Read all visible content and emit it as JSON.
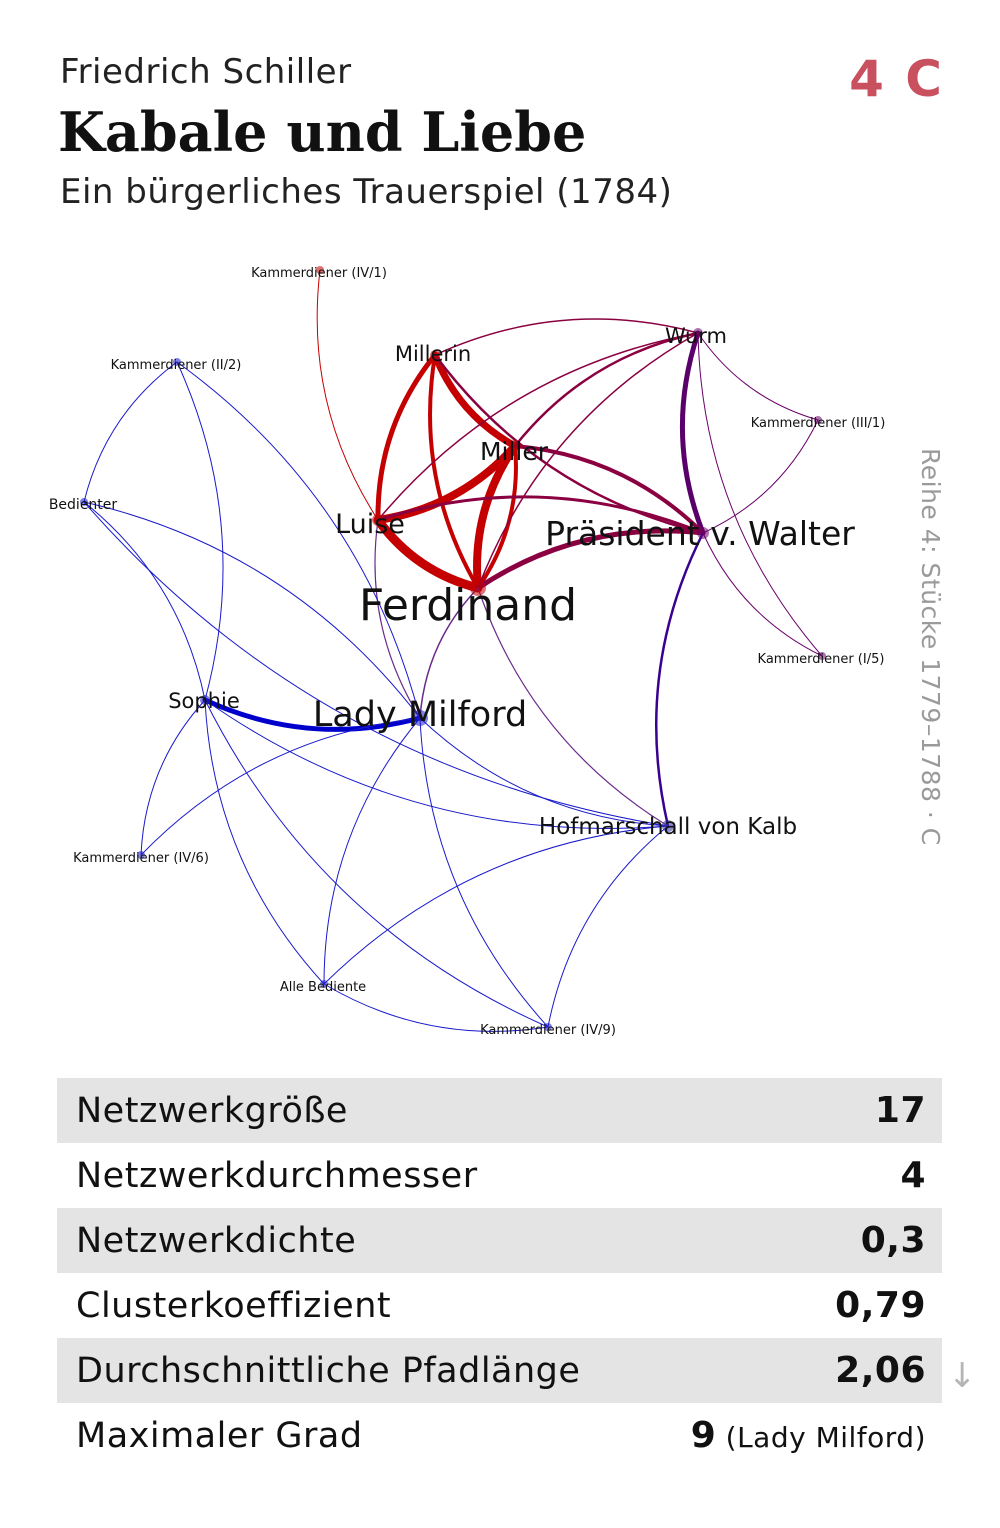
{
  "header": {
    "author": "Friedrich Schiller",
    "title": "Kabale und Liebe",
    "subtitle": "Ein bürgerliches Trauerspiel (1784)",
    "code": "4 C",
    "code_color": "#c8505f",
    "side_label": "Reihe 4: Stücke 1779–1788 · C"
  },
  "network": {
    "nodes": [
      {
        "id": "ferdinand",
        "label": "Ferdinand",
        "color": "#c40000"
      },
      {
        "id": "luise",
        "label": "Luise",
        "color": "#c40000"
      },
      {
        "id": "miller",
        "label": "Miller",
        "color": "#c40000"
      },
      {
        "id": "millerin",
        "label": "Millerin",
        "color": "#c40000"
      },
      {
        "id": "praesident",
        "label": "Präsident v. Walter",
        "color": "#6a006a"
      },
      {
        "id": "wurm",
        "label": "Wurm",
        "color": "#6a006a"
      },
      {
        "id": "milford",
        "label": "Lady Milford",
        "color": "#1a1acc"
      },
      {
        "id": "sophie",
        "label": "Sophie",
        "color": "#1a1acc"
      },
      {
        "id": "kalb",
        "label": "Hofmarschall von Kalb",
        "color": "#3030a0"
      },
      {
        "id": "k_iv1",
        "label": "Kammerdiener (IV/1)",
        "color": "#c40000"
      },
      {
        "id": "k_ii2",
        "label": "Kammerdiener (II/2)",
        "color": "#1a1acc"
      },
      {
        "id": "bedienter",
        "label": "Bedienter",
        "color": "#1a1acc"
      },
      {
        "id": "k_iii1",
        "label": "Kammerdiener (III/1)",
        "color": "#6a006a"
      },
      {
        "id": "k_i5",
        "label": "Kammerdiener (I/5)",
        "color": "#6a006a"
      },
      {
        "id": "k_iv6",
        "label": "Kammerdiener (IV/6)",
        "color": "#1a1acc"
      },
      {
        "id": "alle",
        "label": "Alle Bediente",
        "color": "#1a1acc"
      },
      {
        "id": "k_iv9",
        "label": "Kammerdiener (IV/9)",
        "color": "#1a1acc"
      }
    ],
    "edges": [
      {
        "source": "luise",
        "target": "ferdinand",
        "weight": 9,
        "color": "#c40000"
      },
      {
        "source": "luise",
        "target": "miller",
        "weight": 8,
        "color": "#c40000"
      },
      {
        "source": "miller",
        "target": "ferdinand",
        "weight": 8,
        "color": "#c40000"
      },
      {
        "source": "millerin",
        "target": "miller",
        "weight": 7,
        "color": "#c40000"
      },
      {
        "source": "millerin",
        "target": "luise",
        "weight": 5,
        "color": "#c40000"
      },
      {
        "source": "millerin",
        "target": "ferdinand",
        "weight": 4,
        "color": "#c40000"
      },
      {
        "source": "miller",
        "target": "ferdinand",
        "weight": 4,
        "color": "#c40000"
      },
      {
        "source": "k_iv1",
        "target": "luise",
        "weight": 1,
        "color": "#c40000"
      },
      {
        "source": "praesident",
        "target": "ferdinand",
        "weight": 5,
        "color": "#8a0040"
      },
      {
        "source": "wurm",
        "target": "praesident",
        "weight": 5,
        "color": "#5a006a"
      },
      {
        "source": "praesident",
        "target": "miller",
        "weight": 4,
        "color": "#8a0040"
      },
      {
        "source": "praesident",
        "target": "luise",
        "weight": 3,
        "color": "#8a0040"
      },
      {
        "source": "wurm",
        "target": "miller",
        "weight": 2.5,
        "color": "#8a0040"
      },
      {
        "source": "wurm",
        "target": "millerin",
        "weight": 1.5,
        "color": "#8a0040"
      },
      {
        "source": "wurm",
        "target": "ferdinand",
        "weight": 1.5,
        "color": "#8a0040"
      },
      {
        "source": "wurm",
        "target": "luise",
        "weight": 1.5,
        "color": "#8a0040"
      },
      {
        "source": "millerin",
        "target": "praesident",
        "weight": 2.5,
        "color": "#8a0040"
      },
      {
        "source": "ferdinand",
        "target": "milford",
        "weight": 1.5,
        "color": "#6a2a8a"
      },
      {
        "source": "luise",
        "target": "milford",
        "weight": 1.2,
        "color": "#6a2a8a"
      },
      {
        "source": "ferdinand",
        "target": "kalb",
        "weight": 1.2,
        "color": "#6a2a8a"
      },
      {
        "source": "praesident",
        "target": "kalb",
        "weight": 2.5,
        "color": "#3a0090"
      },
      {
        "source": "wurm",
        "target": "k_iii1",
        "weight": 1,
        "color": "#6a006a"
      },
      {
        "source": "wurm",
        "target": "k_i5",
        "weight": 1,
        "color": "#6a006a"
      },
      {
        "source": "praesident",
        "target": "k_iii1",
        "weight": 1,
        "color": "#6a006a"
      },
      {
        "source": "praesident",
        "target": "k_i5",
        "weight": 1,
        "color": "#6a006a"
      },
      {
        "source": "sophie",
        "target": "milford",
        "weight": 5,
        "color": "#0000cc"
      },
      {
        "source": "milford",
        "target": "k_ii2",
        "weight": 1,
        "color": "#1a1acc"
      },
      {
        "source": "milford",
        "target": "bedienter",
        "weight": 1,
        "color": "#1a1acc"
      },
      {
        "source": "milford",
        "target": "k_iv6",
        "weight": 1,
        "color": "#1a1acc"
      },
      {
        "source": "milford",
        "target": "alle",
        "weight": 1,
        "color": "#1a1acc"
      },
      {
        "source": "milford",
        "target": "k_iv9",
        "weight": 1,
        "color": "#1a1acc"
      },
      {
        "source": "milford",
        "target": "kalb",
        "weight": 1,
        "color": "#1a1acc"
      },
      {
        "source": "sophie",
        "target": "k_ii2",
        "weight": 1,
        "color": "#1a1acc"
      },
      {
        "source": "sophie",
        "target": "bedienter",
        "weight": 1,
        "color": "#1a1acc"
      },
      {
        "source": "sophie",
        "target": "k_iv6",
        "weight": 1,
        "color": "#1a1acc"
      },
      {
        "source": "sophie",
        "target": "alle",
        "weight": 1,
        "color": "#1a1acc"
      },
      {
        "source": "sophie",
        "target": "k_iv9",
        "weight": 1,
        "color": "#1a1acc"
      },
      {
        "source": "sophie",
        "target": "kalb",
        "weight": 1,
        "color": "#1a1acc"
      },
      {
        "source": "k_ii2",
        "target": "bedienter",
        "weight": 1,
        "color": "#1a1acc"
      },
      {
        "source": "alle",
        "target": "k_iv9",
        "weight": 1,
        "color": "#1a1acc"
      },
      {
        "source": "kalb",
        "target": "alle",
        "weight": 1,
        "color": "#1a1acc"
      },
      {
        "source": "kalb",
        "target": "k_iv9",
        "weight": 1,
        "color": "#1a1acc"
      },
      {
        "source": "bedienter",
        "target": "kalb",
        "weight": 1,
        "color": "#1a1acc"
      }
    ]
  },
  "stats": [
    {
      "label": "Netzwerkgröße",
      "value": "17",
      "extra": ""
    },
    {
      "label": "Netzwerkdurchmesser",
      "value": "4",
      "extra": ""
    },
    {
      "label": "Netzwerkdichte",
      "value": "0,3",
      "extra": ""
    },
    {
      "label": "Clusterkoeffizient",
      "value": "0,79",
      "extra": ""
    },
    {
      "label": "Durchschnittliche Pfadlänge",
      "value": "2,06",
      "extra": ""
    },
    {
      "label": "Maximaler Grad",
      "value": "9",
      "extra": "(Lady Milford)"
    }
  ],
  "arrow_icon": "arrow-down-icon"
}
